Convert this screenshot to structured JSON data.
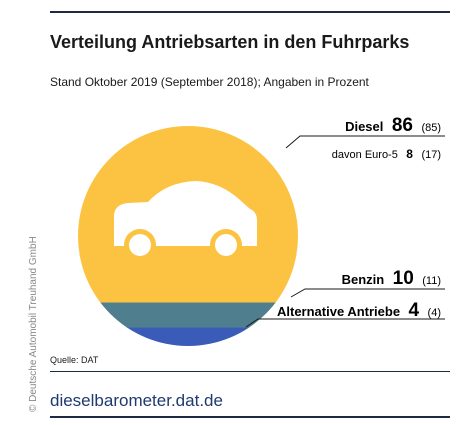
{
  "title": "Verteilung Antriebsarten in den Fuhrparks",
  "subtitle": "Stand Oktober 2019 (September 2018); Angaben in Prozent",
  "source": "Quelle: DAT",
  "footer_link": "dieselbarometer.dat.de",
  "copyright": "© Deutsche Automobil Treuhand GmbH",
  "icons": {
    "pie_center": "car-icon"
  },
  "colors": {
    "diesel": "#fcc342",
    "benzin": "#4f7f8f",
    "alternative": "#3a5cb8",
    "brand": "#1e3a6e"
  },
  "chart_data": {
    "type": "pie",
    "slices": [
      {
        "name": "Diesel",
        "value": 86,
        "previous": 85,
        "value_text": "86",
        "previous_text": "(85)",
        "color": "#fcc342",
        "sub": {
          "name": "davon Euro-5",
          "value": 8,
          "previous": 17,
          "value_text": "8",
          "previous_text": "(17)"
        }
      },
      {
        "name": "Benzin",
        "value": 10,
        "previous": 11,
        "value_text": "10",
        "previous_text": "(11)",
        "color": "#4f7f8f"
      },
      {
        "name": "Alternative Antriebe",
        "value": 4,
        "previous": 4,
        "value_text": "4",
        "previous_text": "(4)",
        "color": "#3a5cb8"
      }
    ]
  }
}
